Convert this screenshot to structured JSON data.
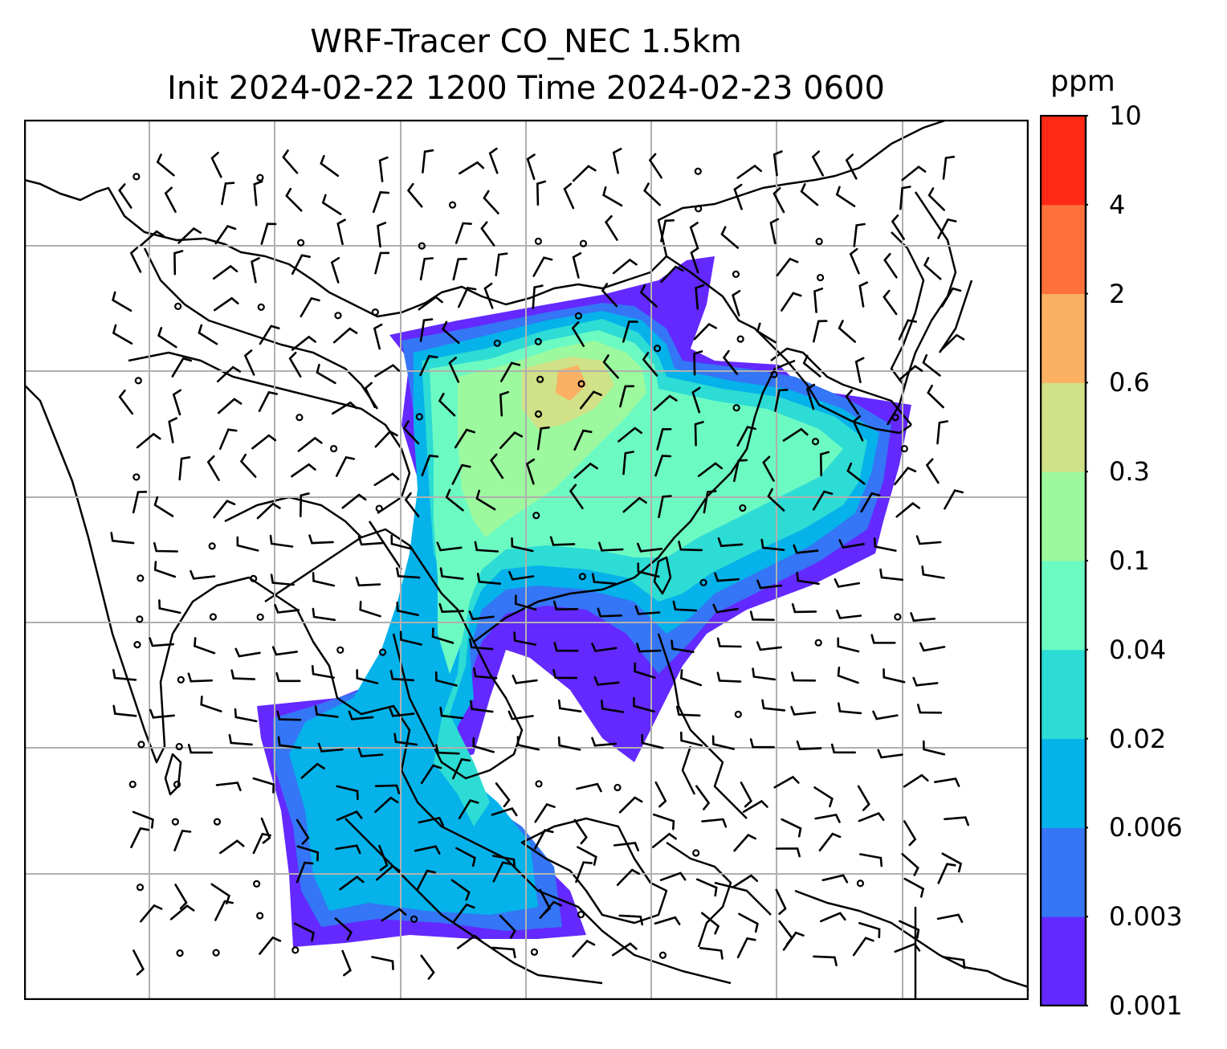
{
  "title": {
    "line1": "WRF-Tracer CO_NEC 1.5km",
    "line2": "Init 2024-02-22 1200 Time 2024-02-23 0600"
  },
  "colorbar": {
    "unit": "ppm",
    "ticks": [
      "0.001",
      "0.003",
      "0.006",
      "0.02",
      "0.04",
      "0.1",
      "0.3",
      "0.6",
      "2",
      "4",
      "10"
    ],
    "colors": [
      "#6329ff",
      "#3476f5",
      "#05b2ea",
      "#2ddcd4",
      "#6cfac3",
      "#9cf99e",
      "#d0e187",
      "#fbb063",
      "#ff703a",
      "#ff2a16"
    ]
  },
  "map": {
    "gridlines": true,
    "coastline_color": "#000000",
    "grid_color": "#b0b0b0"
  }
}
